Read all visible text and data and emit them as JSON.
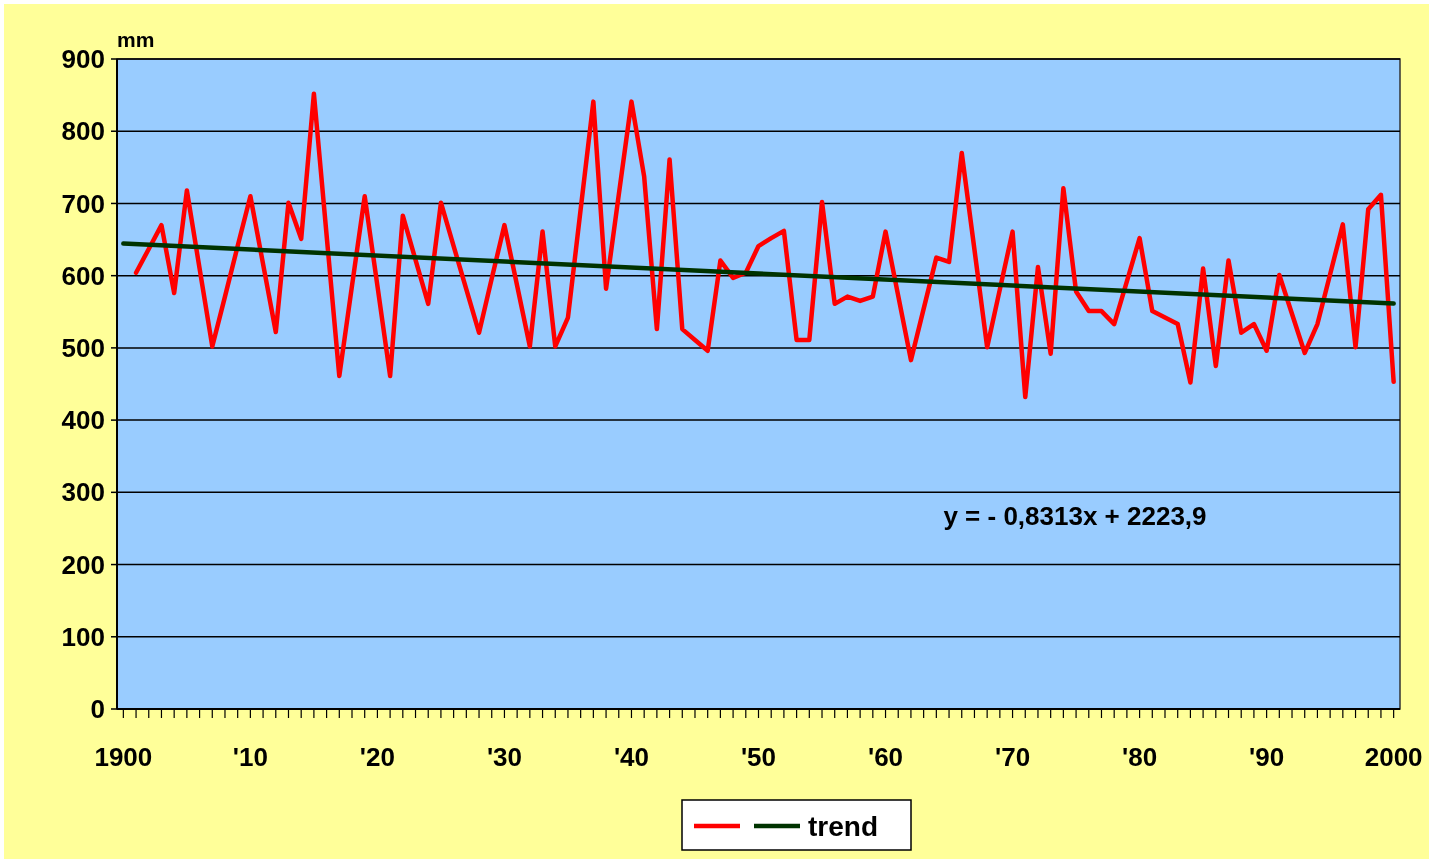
{
  "chart_data": {
    "type": "line",
    "ylabel": "mm",
    "x": [
      1901,
      1902,
      1903,
      1904,
      1905,
      1906,
      1907,
      1908,
      1909,
      1910,
      1911,
      1912,
      1913,
      1914,
      1915,
      1916,
      1917,
      1918,
      1919,
      1920,
      1921,
      1922,
      1923,
      1924,
      1925,
      1926,
      1927,
      1928,
      1929,
      1930,
      1931,
      1932,
      1933,
      1934,
      1935,
      1936,
      1937,
      1938,
      1939,
      1940,
      1941,
      1942,
      1943,
      1944,
      1945,
      1946,
      1947,
      1948,
      1949,
      1950,
      1951,
      1952,
      1953,
      1954,
      1955,
      1956,
      1957,
      1958,
      1959,
      1960,
      1961,
      1962,
      1963,
      1964,
      1965,
      1966,
      1967,
      1968,
      1969,
      1970,
      1971,
      1972,
      1973,
      1974,
      1975,
      1976,
      1977,
      1978,
      1979,
      1980,
      1981,
      1982,
      1983,
      1984,
      1985,
      1986,
      1987,
      1988,
      1989,
      1990,
      1991,
      1992,
      1993,
      1994,
      1995,
      1996,
      1997,
      1998,
      1999,
      2000
    ],
    "series": [
      {
        "color": "#ff0000",
        "values": [
          604,
          637,
          670,
          576,
          718,
          610,
          502,
          571,
          641,
          710,
          616,
          522,
          701,
          651,
          852,
          656,
          461,
          586,
          710,
          586,
          461,
          683,
          622,
          561,
          701,
          641,
          581,
          521,
          596,
          670,
          586,
          502,
          661,
          502,
          542,
          692,
          841,
          582,
          712,
          841,
          737,
          526,
          761,
          526,
          511,
          496,
          621,
          597,
          604,
          641,
          652,
          662,
          511,
          511,
          702,
          561,
          571,
          565,
          571,
          661,
          572,
          483,
          554,
          625,
          619,
          770,
          636,
          501,
          581,
          661,
          432,
          612,
          492,
          721,
          578,
          551,
          551,
          533,
          592,
          652,
          551,
          542,
          533,
          452,
          610,
          475,
          621,
          521,
          533,
          496,
          601,
          547,
          493,
          533,
          602,
          671,
          501,
          692,
          712,
          453
        ]
      },
      {
        "name": "trend",
        "color": "#003300",
        "x": [
          1900,
          2000
        ],
        "values": [
          644.4,
          561.3
        ]
      }
    ],
    "xlim": [
      1899.5,
      2000.5
    ],
    "xticks": [
      {
        "value": 1900,
        "label": "1900"
      },
      {
        "value": 1901,
        "label": null
      },
      {
        "value": 1902,
        "label": null
      },
      {
        "value": 1903,
        "label": null
      },
      {
        "value": 1904,
        "label": null
      },
      {
        "value": 1905,
        "label": null
      },
      {
        "value": 1906,
        "label": null
      },
      {
        "value": 1907,
        "label": null
      },
      {
        "value": 1908,
        "label": null
      },
      {
        "value": 1909,
        "label": null
      },
      {
        "value": 1910,
        "label": "'10"
      },
      {
        "value": 1911,
        "label": null
      },
      {
        "value": 1912,
        "label": null
      },
      {
        "value": 1913,
        "label": null
      },
      {
        "value": 1914,
        "label": null
      },
      {
        "value": 1915,
        "label": null
      },
      {
        "value": 1916,
        "label": null
      },
      {
        "value": 1917,
        "label": null
      },
      {
        "value": 1918,
        "label": null
      },
      {
        "value": 1919,
        "label": null
      },
      {
        "value": 1920,
        "label": "'20"
      },
      {
        "value": 1921,
        "label": null
      },
      {
        "value": 1922,
        "label": null
      },
      {
        "value": 1923,
        "label": null
      },
      {
        "value": 1924,
        "label": null
      },
      {
        "value": 1925,
        "label": null
      },
      {
        "value": 1926,
        "label": null
      },
      {
        "value": 1927,
        "label": null
      },
      {
        "value": 1928,
        "label": null
      },
      {
        "value": 1929,
        "label": null
      },
      {
        "value": 1930,
        "label": "'30"
      },
      {
        "value": 1931,
        "label": null
      },
      {
        "value": 1932,
        "label": null
      },
      {
        "value": 1933,
        "label": null
      },
      {
        "value": 1934,
        "label": null
      },
      {
        "value": 1935,
        "label": null
      },
      {
        "value": 1936,
        "label": null
      },
      {
        "value": 1937,
        "label": null
      },
      {
        "value": 1938,
        "label": null
      },
      {
        "value": 1939,
        "label": null
      },
      {
        "value": 1940,
        "label": "'40"
      },
      {
        "value": 1941,
        "label": null
      },
      {
        "value": 1942,
        "label": null
      },
      {
        "value": 1943,
        "label": null
      },
      {
        "value": 1944,
        "label": null
      },
      {
        "value": 1945,
        "label": null
      },
      {
        "value": 1946,
        "label": null
      },
      {
        "value": 1947,
        "label": null
      },
      {
        "value": 1948,
        "label": null
      },
      {
        "value": 1949,
        "label": null
      },
      {
        "value": 1950,
        "label": "'50"
      },
      {
        "value": 1951,
        "label": null
      },
      {
        "value": 1952,
        "label": null
      },
      {
        "value": 1953,
        "label": null
      },
      {
        "value": 1954,
        "label": null
      },
      {
        "value": 1955,
        "label": null
      },
      {
        "value": 1956,
        "label": null
      },
      {
        "value": 1957,
        "label": null
      },
      {
        "value": 1958,
        "label": null
      },
      {
        "value": 1959,
        "label": null
      },
      {
        "value": 1960,
        "label": "'60"
      },
      {
        "value": 1961,
        "label": null
      },
      {
        "value": 1962,
        "label": null
      },
      {
        "value": 1963,
        "label": null
      },
      {
        "value": 1964,
        "label": null
      },
      {
        "value": 1965,
        "label": null
      },
      {
        "value": 1966,
        "label": null
      },
      {
        "value": 1967,
        "label": null
      },
      {
        "value": 1968,
        "label": null
      },
      {
        "value": 1969,
        "label": null
      },
      {
        "value": 1970,
        "label": "'70"
      },
      {
        "value": 1971,
        "label": null
      },
      {
        "value": 1972,
        "label": null
      },
      {
        "value": 1973,
        "label": null
      },
      {
        "value": 1974,
        "label": null
      },
      {
        "value": 1975,
        "label": null
      },
      {
        "value": 1976,
        "label": null
      },
      {
        "value": 1977,
        "label": null
      },
      {
        "value": 1978,
        "label": null
      },
      {
        "value": 1979,
        "label": null
      },
      {
        "value": 1980,
        "label": "'80"
      },
      {
        "value": 1981,
        "label": null
      },
      {
        "value": 1982,
        "label": null
      },
      {
        "value": 1983,
        "label": null
      },
      {
        "value": 1984,
        "label": null
      },
      {
        "value": 1985,
        "label": null
      },
      {
        "value": 1986,
        "label": null
      },
      {
        "value": 1987,
        "label": null
      },
      {
        "value": 1988,
        "label": null
      },
      {
        "value": 1989,
        "label": null
      },
      {
        "value": 1990,
        "label": "'90"
      },
      {
        "value": 1991,
        "label": null
      },
      {
        "value": 1992,
        "label": null
      },
      {
        "value": 1993,
        "label": null
      },
      {
        "value": 1994,
        "label": null
      },
      {
        "value": 1995,
        "label": null
      },
      {
        "value": 1996,
        "label": null
      },
      {
        "value": 1997,
        "label": null
      },
      {
        "value": 1998,
        "label": null
      },
      {
        "value": 1999,
        "label": null
      },
      {
        "value": 2000,
        "label": "2000"
      }
    ],
    "ylim": [
      0,
      900
    ],
    "yticks": [
      0,
      100,
      200,
      300,
      400,
      500,
      600,
      700,
      800,
      900
    ],
    "grid": "y",
    "legend": "bottom",
    "marker": "none",
    "line_style": "solid",
    "annotations": [
      "y = - 0,8313x + 2223,9"
    ]
  }
}
